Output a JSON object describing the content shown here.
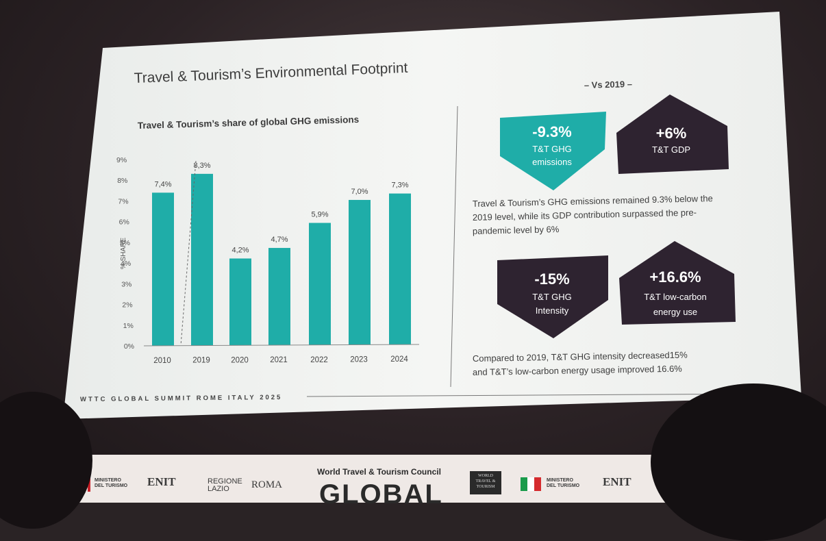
{
  "slide": {
    "title": "Travel & Tourism’s Environmental Footprint",
    "footer": "WTTC GLOBAL SUMMIT ROME ITALY 2025",
    "vs_label": "– Vs 2019 –"
  },
  "chart_data": {
    "type": "bar",
    "title": "Travel & Tourism’s share of global GHG emissions",
    "ylabel": "% SHARE",
    "xlabel": "",
    "categories": [
      "2010",
      "2019",
      "2020",
      "2021",
      "2022",
      "2023",
      "2024"
    ],
    "values": [
      7.4,
      8.3,
      4.2,
      4.7,
      5.9,
      7.0,
      7.3
    ],
    "data_labels": [
      "7,4%",
      "8,3%",
      "4,2%",
      "4,7%",
      "5,9%",
      "7,0%",
      "7,3%"
    ],
    "ylim": [
      0,
      9
    ],
    "yticks": [
      "0%",
      "1%",
      "2%",
      "3%",
      "4%",
      "5%",
      "6%",
      "7%",
      "8%",
      "9%"
    ],
    "bar_color": "#1fada8",
    "grid": false
  },
  "kpis": {
    "ghg_emissions": {
      "value": "-9.3%",
      "label1": "T&T GHG",
      "label2": "emissions"
    },
    "gdp": {
      "value": "+6%",
      "label1": "T&T GDP"
    },
    "ghg_intensity": {
      "value": "-15%",
      "label1": "T&T GHG",
      "label2": "Intensity"
    },
    "low_carbon": {
      "value": "+16.6%",
      "label1": "T&T low-carbon",
      "label2": "energy use"
    }
  },
  "texts": {
    "para1": [
      "Travel & Tourism’s GHG emissions remained 9.3% below the",
      "2019 level, while its GDP contribution surpassed the pre-",
      "pandemic level by 6%"
    ],
    "para2": [
      "Compared to 2019, T&T GHG intensity decreased15%",
      "and T&T’s low-carbon energy usage improved 16.6%"
    ]
  },
  "banner": {
    "council": "World Travel & Tourism Council",
    "big": "GLOBAL",
    "ministero1": "MINISTERO",
    "ministero2": "DEL TURISMO",
    "enit": "ENIT",
    "regione1": "REGIONE",
    "regione2": "LAZIO",
    "roma": "ROMA",
    "ministero_r1": "MINISTERO",
    "ministero_r2": "DEL TURISMO",
    "enit_r": "ENIT",
    "wttc_logo": "WORLD TRAVEL & TOURISM"
  },
  "colors": {
    "teal": "#1fada8",
    "dark": "#2e2330",
    "slide_bg": "#f3f4f2",
    "text": "#3d3d3d"
  }
}
